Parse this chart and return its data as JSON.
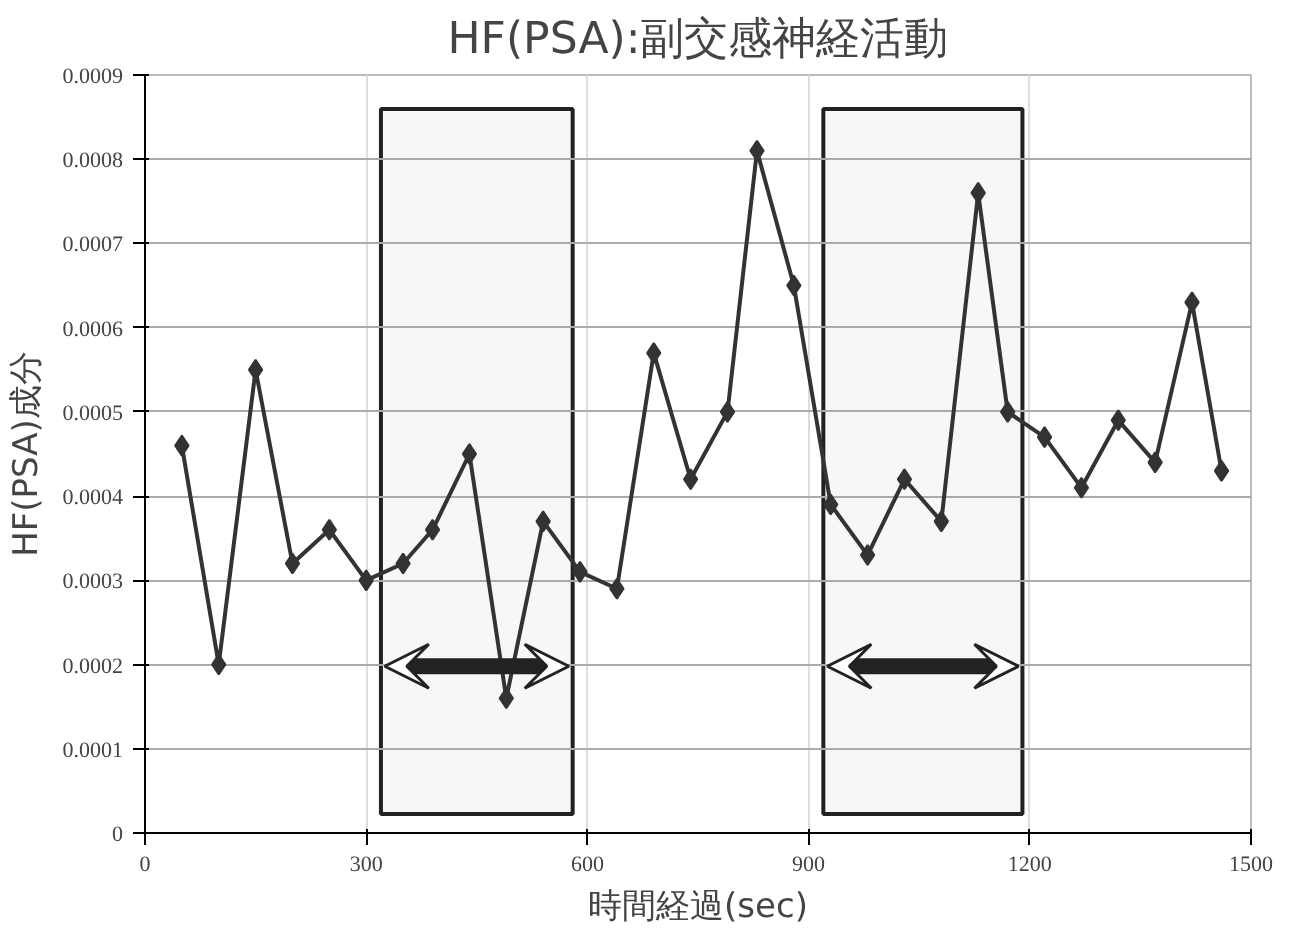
{
  "chart_data": {
    "type": "line",
    "title": "HF(PSA):副交感神経活動",
    "xlabel": "時間経過(sec)",
    "ylabel": "HF(PSA)成分",
    "x": [
      50,
      100,
      150,
      200,
      250,
      300,
      350,
      390,
      440,
      490,
      540,
      590,
      640,
      690,
      740,
      790,
      830,
      880,
      930,
      980,
      1030,
      1080,
      1130,
      1170,
      1220,
      1270,
      1320,
      1370,
      1420,
      1460
    ],
    "series": [
      {
        "color": "#333333",
        "values": [
          0.00046,
          0.0002,
          0.00055,
          0.00032,
          0.00036,
          0.0003,
          0.00032,
          0.00036,
          0.00045,
          0.00016,
          0.00037,
          0.00031,
          0.00029,
          0.00057,
          0.00042,
          0.0005,
          0.00081,
          0.00065,
          0.00039,
          0.00033,
          0.00042,
          0.00037,
          0.00076,
          0.0005,
          0.00047,
          0.00041,
          0.00049,
          0.00044,
          0.00063,
          0.00043
        ]
      }
    ],
    "xlim": [
      0,
      1500
    ],
    "xticks": [
      0,
      300,
      600,
      900,
      1200,
      1500
    ],
    "ylim": [
      0,
      0.0009
    ],
    "yticks": [
      0,
      0.0001,
      0.0002,
      0.0003,
      0.0004,
      0.0005,
      0.0006,
      0.0007,
      0.0008,
      0.0009
    ],
    "bands": [
      {
        "axis": "x",
        "from": 320,
        "to": 580,
        "color": "#f7f7f7"
      },
      {
        "axis": "x",
        "from": 920,
        "to": 1190,
        "color": "#f7f7f7"
      }
    ],
    "grid": true,
    "marker": "diamond",
    "line_style": "solid"
  }
}
